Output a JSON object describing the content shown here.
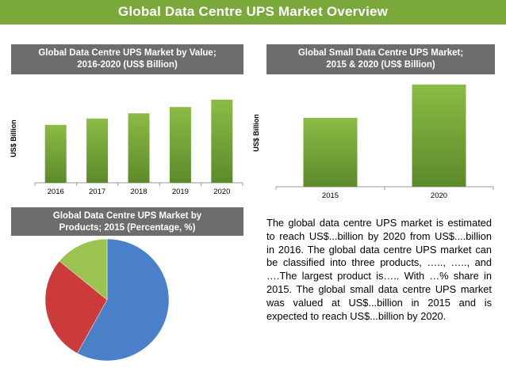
{
  "page": {
    "title": "Global Data Centre UPS Market Overview"
  },
  "colors": {
    "accent": "#7aa83a",
    "header_gray": "#6d6d6d",
    "bar_green": "#7aa83a",
    "pie_blue": "#4a7fc9",
    "pie_red": "#cc3b3b",
    "pie_green": "#9bc34f"
  },
  "chart_data": [
    {
      "type": "bar",
      "title_line1": "Global Data Centre UPS Market by Value;",
      "title_line2": "2016-2020 (US$ Billion)",
      "ylabel": "US$ Billion",
      "categories": [
        "2016",
        "2017",
        "2018",
        "2019",
        "2020"
      ],
      "values": [
        55,
        61,
        66,
        72,
        79
      ],
      "ylim": [
        0,
        100
      ],
      "grid": false
    },
    {
      "type": "bar",
      "title_line1": "Global Small Data Centre UPS Market;",
      "title_line2": "2015 & 2020 (US$ Billion)",
      "ylabel": "US$ Billion",
      "categories": [
        "2015",
        "2020"
      ],
      "values": [
        64,
        95
      ],
      "ylim": [
        0,
        100
      ],
      "grid": false
    },
    {
      "type": "pie",
      "title_line1": "Global Data Centre UPS Market by",
      "title_line2": "Products; 2015 (Percentage, %)",
      "values": [
        58,
        28,
        14
      ],
      "colors": [
        "#4a7fc9",
        "#cc3b3b",
        "#9bc34f"
      ]
    }
  ],
  "description": "The global data centre UPS market is estimated to reach US$...billion by 2020 from US$....billion in 2016. The global data centre UPS market can be classified into three products, ….., ….., and ….The largest product is….. With …% share in 2015. The global small data centre UPS market was valued at US$...billion in 2015 and is expected to reach US$...billion by 2020."
}
